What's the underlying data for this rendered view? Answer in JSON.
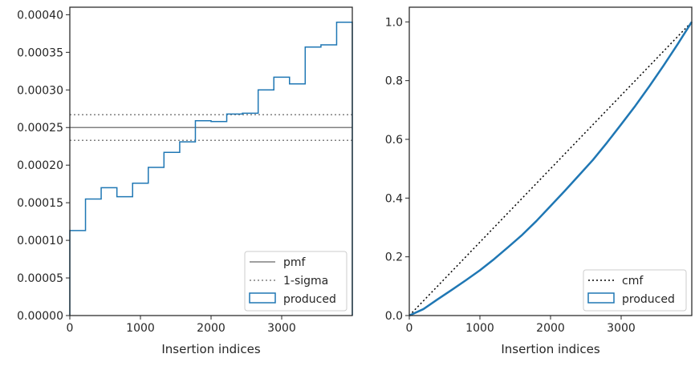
{
  "chart_data": [
    {
      "type": "line",
      "xlabel": "Insertion indices",
      "ylabel": "",
      "xlim": [
        0,
        4000
      ],
      "ylim": [
        0,
        0.00041
      ],
      "xticks": [
        0,
        1000,
        2000,
        3000
      ],
      "xtick_labels": [
        "0",
        "1000",
        "2000",
        "3000"
      ],
      "yticks": [
        0,
        5e-05,
        0.0001,
        0.00015,
        0.0002,
        0.00025,
        0.0003,
        0.00035,
        0.0004
      ],
      "ytick_labels": [
        "0.00000",
        "0.00005",
        "0.00010",
        "0.00015",
        "0.00020",
        "0.00025",
        "0.00030",
        "0.00035",
        "0.00040"
      ],
      "legend_position": "lower-right",
      "legend": [
        "pmf",
        "1-sigma",
        "produced"
      ],
      "pmf": 0.00025,
      "sigma_band": [
        0.000233,
        0.000267
      ],
      "produced_edges": [
        0,
        222,
        444,
        667,
        889,
        1111,
        1333,
        1556,
        1778,
        2000,
        2222,
        2444,
        2667,
        2889,
        3111,
        3333,
        3556,
        3778,
        4000
      ],
      "produced_values": [
        0.000113,
        0.000155,
        0.00017,
        0.000158,
        0.000176,
        0.000197,
        0.000217,
        0.000231,
        0.000259,
        0.000258,
        0.000268,
        0.000269,
        0.0003,
        0.000317,
        0.000308,
        0.000357,
        0.00036,
        0.00039
      ],
      "colors": {
        "produced": "#1f77b4",
        "pmf": "#808080",
        "sigma": "#808080",
        "frame": "#262626"
      }
    },
    {
      "type": "line",
      "xlabel": "Insertion indices",
      "ylabel": "",
      "xlim": [
        0,
        4000
      ],
      "ylim": [
        0,
        1.05
      ],
      "xticks": [
        0,
        1000,
        2000,
        3000
      ],
      "xtick_labels": [
        "0",
        "1000",
        "2000",
        "3000"
      ],
      "yticks": [
        0,
        0.2,
        0.4,
        0.6,
        0.8,
        1.0
      ],
      "ytick_labels": [
        "0.0",
        "0.2",
        "0.4",
        "0.6",
        "0.8",
        "1.0"
      ],
      "legend_position": "lower-right",
      "legend": [
        "cmf",
        "produced"
      ],
      "cmf_x": [
        0,
        4000
      ],
      "cmf_y": [
        0,
        1
      ],
      "produced_x": [
        0,
        200,
        400,
        600,
        800,
        1000,
        1200,
        1400,
        1600,
        1800,
        2000,
        2200,
        2400,
        2600,
        2800,
        3000,
        3200,
        3400,
        3600,
        3800,
        4000
      ],
      "produced_y": [
        0,
        0.022,
        0.055,
        0.087,
        0.12,
        0.154,
        0.192,
        0.233,
        0.275,
        0.322,
        0.373,
        0.424,
        0.477,
        0.53,
        0.589,
        0.651,
        0.714,
        0.781,
        0.851,
        0.924,
        1.0
      ],
      "colors": {
        "produced": "#1f77b4",
        "cmf": "#000000",
        "frame": "#262626"
      }
    }
  ]
}
